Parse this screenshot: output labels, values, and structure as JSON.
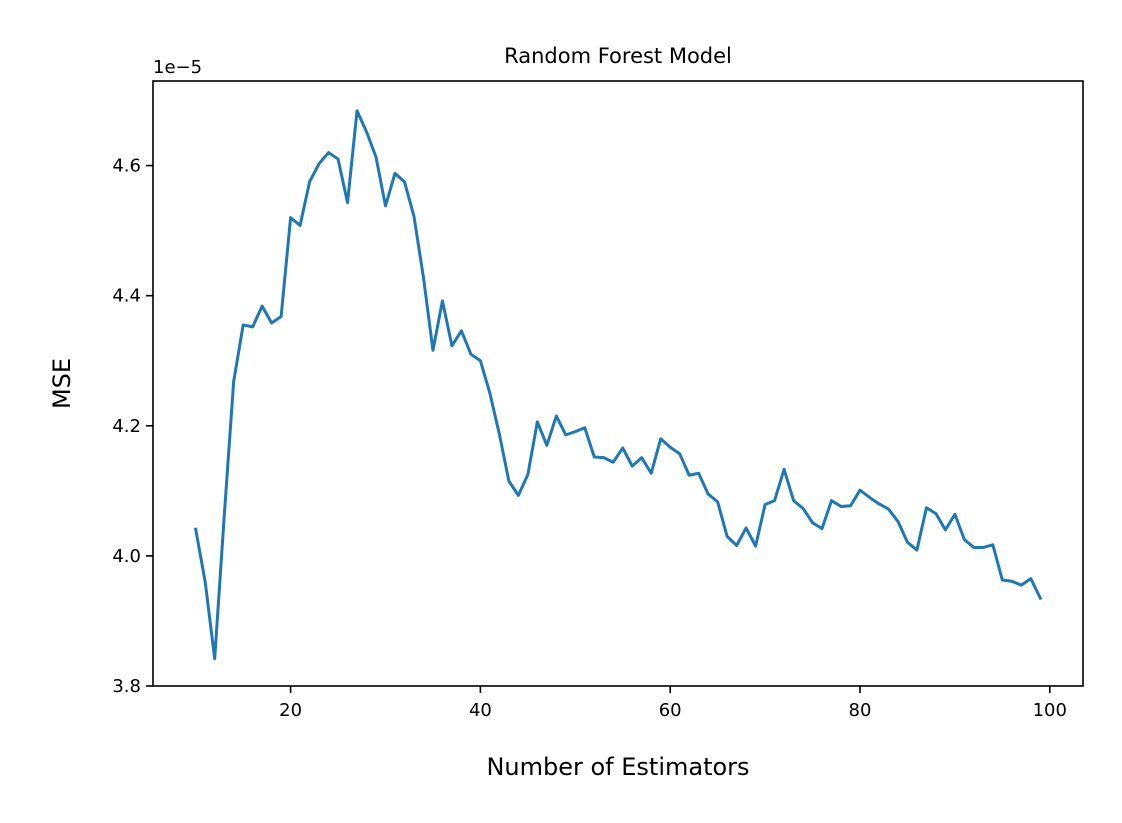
{
  "chart_data": {
    "type": "line",
    "title": "Random Forest Model",
    "xlabel": "Number of Estimators",
    "ylabel": "MSE",
    "y_offset_text": "1e−5",
    "xlim": [
      5.5,
      103.5
    ],
    "ylim": [
      3.8,
      4.73
    ],
    "x_ticks": [
      20,
      40,
      60,
      80,
      100
    ],
    "x_tick_labels": [
      "20",
      "40",
      "60",
      "80",
      "100"
    ],
    "y_ticks": [
      3.8,
      4.0,
      4.2,
      4.4,
      4.6
    ],
    "y_tick_labels": [
      "3.8",
      "4.0",
      "4.2",
      "4.4",
      "4.6"
    ],
    "grid": false,
    "series": [
      {
        "color": "#1f77b4",
        "x": [
          10,
          11,
          12,
          13,
          14,
          15,
          16,
          17,
          18,
          19,
          20,
          21,
          22,
          23,
          24,
          25,
          26,
          27,
          28,
          29,
          30,
          31,
          32,
          33,
          34,
          35,
          36,
          37,
          38,
          39,
          40,
          41,
          42,
          43,
          44,
          45,
          46,
          47,
          48,
          49,
          50,
          51,
          52,
          53,
          54,
          55,
          56,
          57,
          58,
          59,
          60,
          61,
          62,
          63,
          64,
          65,
          66,
          67,
          68,
          69,
          70,
          71,
          72,
          73,
          74,
          75,
          76,
          77,
          78,
          79,
          80,
          81,
          82,
          83,
          84,
          85,
          86,
          87,
          88,
          89,
          90,
          91,
          92,
          93,
          94,
          95,
          96,
          97,
          98,
          99
        ],
        "values": [
          4.041,
          3.96,
          3.842,
          4.06,
          4.268,
          4.355,
          4.352,
          4.384,
          4.358,
          4.368,
          4.52,
          4.508,
          4.575,
          4.603,
          4.62,
          4.61,
          4.543,
          4.684,
          4.652,
          4.613,
          4.538,
          4.588,
          4.575,
          4.522,
          4.428,
          4.316,
          4.392,
          4.323,
          4.346,
          4.31,
          4.3,
          4.25,
          4.187,
          4.115,
          4.093,
          4.125,
          4.206,
          4.17,
          4.215,
          4.186,
          4.191,
          4.197,
          4.152,
          4.151,
          4.144,
          4.166,
          4.138,
          4.151,
          4.127,
          4.18,
          4.167,
          4.157,
          4.124,
          4.127,
          4.095,
          4.083,
          4.03,
          4.016,
          4.043,
          4.015,
          4.079,
          4.085,
          4.133,
          4.085,
          4.073,
          4.051,
          4.042,
          4.085,
          4.076,
          4.077,
          4.101,
          4.09,
          4.08,
          4.072,
          4.053,
          4.021,
          4.009,
          4.074,
          4.065,
          4.04,
          4.064,
          4.025,
          4.013,
          4.013,
          4.017,
          3.963,
          3.961,
          3.955,
          3.965,
          3.935
        ]
      }
    ]
  }
}
